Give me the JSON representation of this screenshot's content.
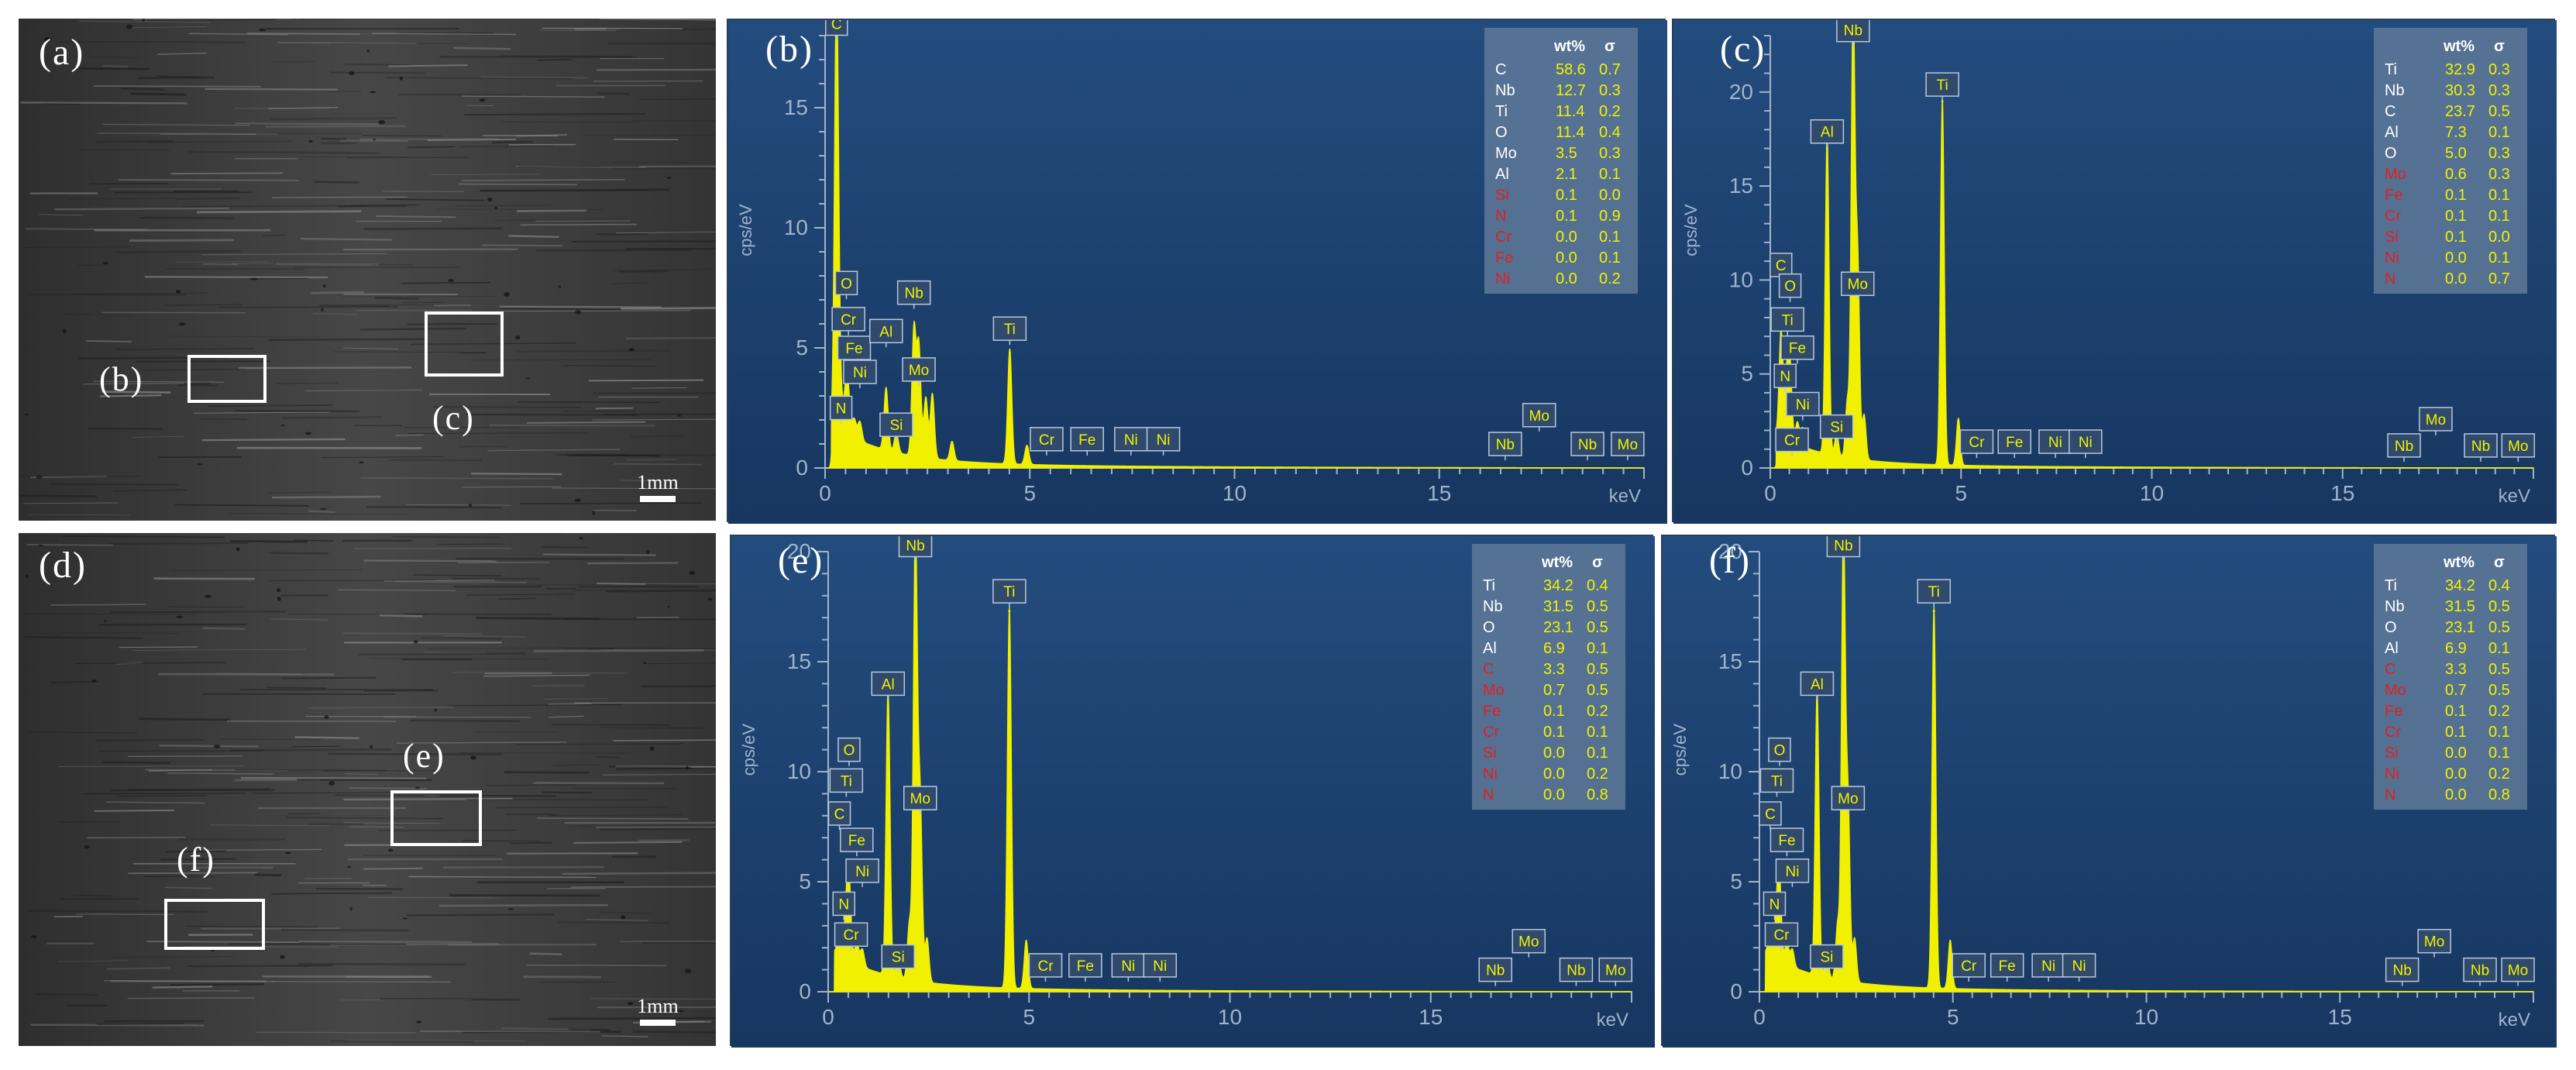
{
  "colors": {
    "spectrum": "#f0f000",
    "plot_bg_top": "#234c7e",
    "plot_bg_bottom": "#173660",
    "label_yellow": "#f2f200",
    "label_red": "#e0201e",
    "label_white": "#ffffff",
    "axis": "#9fb4cc"
  },
  "sem": [
    {
      "id": "a",
      "letter": "(a)",
      "scale_label": "1mm",
      "rois": [
        {
          "label": "(b)"
        },
        {
          "label": "(c)"
        }
      ]
    },
    {
      "id": "d",
      "letter": "(d)",
      "scale_label": "1mm",
      "rois": [
        {
          "label": "(e)"
        },
        {
          "label": "(f)"
        }
      ]
    }
  ],
  "chart_data": [
    {
      "type": "line",
      "panel": "(b)",
      "xlabel": "keV",
      "ylabel": "cps/eV",
      "xlim": [
        0,
        20
      ],
      "ylim": [
        0,
        18
      ],
      "xticks": [
        "0",
        "5",
        "10",
        "15"
      ],
      "yticks": [
        "0",
        "5",
        "10",
        "15"
      ],
      "table_header": [
        "wt%",
        "σ"
      ],
      "table": [
        {
          "el": "C",
          "wt": "58.6",
          "sigma": "0.7",
          "color": "white"
        },
        {
          "el": "Nb",
          "wt": "12.7",
          "sigma": "0.3",
          "color": "white"
        },
        {
          "el": "Ti",
          "wt": "11.4",
          "sigma": "0.2",
          "color": "white"
        },
        {
          "el": "O",
          "wt": "11.4",
          "sigma": "0.4",
          "color": "white"
        },
        {
          "el": "Mo",
          "wt": "3.5",
          "sigma": "0.3",
          "color": "white"
        },
        {
          "el": "Al",
          "wt": "2.1",
          "sigma": "0.1",
          "color": "white"
        },
        {
          "el": "Si",
          "wt": "0.1",
          "sigma": "0.0",
          "color": "red"
        },
        {
          "el": "N",
          "wt": "0.1",
          "sigma": "0.9",
          "color": "red"
        },
        {
          "el": "Cr",
          "wt": "0.0",
          "sigma": "0.1",
          "color": "red"
        },
        {
          "el": "Fe",
          "wt": "0.0",
          "sigma": "0.1",
          "color": "red"
        },
        {
          "el": "Ni",
          "wt": "0.0",
          "sigma": "0.2",
          "color": "red"
        }
      ],
      "peaks": [
        {
          "x": 0.28,
          "y": 18.5,
          "w": 0.05
        },
        {
          "x": 0.39,
          "y": 1.2,
          "w": 0.05
        },
        {
          "x": 0.52,
          "y": 2.0,
          "w": 0.05
        },
        {
          "x": 0.57,
          "y": 1.0,
          "w": 0.05
        },
        {
          "x": 0.71,
          "y": 0.8,
          "w": 0.05
        },
        {
          "x": 0.85,
          "y": 0.8,
          "w": 0.05
        },
        {
          "x": 1.49,
          "y": 2.6,
          "w": 0.05
        },
        {
          "x": 1.74,
          "y": 0.8,
          "w": 0.05
        },
        {
          "x": 2.17,
          "y": 5.3,
          "w": 0.05
        },
        {
          "x": 2.29,
          "y": 4.6,
          "w": 0.05
        },
        {
          "x": 2.46,
          "y": 2.5,
          "w": 0.05
        },
        {
          "x": 2.62,
          "y": 2.7,
          "w": 0.05
        },
        {
          "x": 3.1,
          "y": 0.8,
          "w": 0.05
        },
        {
          "x": 4.51,
          "y": 4.8,
          "w": 0.05
        },
        {
          "x": 4.93,
          "y": 0.8,
          "w": 0.05
        }
      ],
      "labels": [
        {
          "t": "C",
          "x": 0.28,
          "y": 18.5
        },
        {
          "t": "O",
          "x": 0.52,
          "y": 7.7
        },
        {
          "t": "Cr",
          "x": 0.57,
          "y": 6.2
        },
        {
          "t": "Fe",
          "x": 0.71,
          "y": 5.0
        },
        {
          "t": "Al",
          "x": 1.49,
          "y": 5.7
        },
        {
          "t": "Nb",
          "x": 2.17,
          "y": 7.3
        },
        {
          "t": "Ni",
          "x": 0.85,
          "y": 4.0
        },
        {
          "t": "Mo",
          "x": 2.29,
          "y": 4.1
        },
        {
          "t": "N",
          "x": 0.39,
          "y": 2.5
        },
        {
          "t": "Si",
          "x": 1.74,
          "y": 1.8
        },
        {
          "t": "Ti",
          "x": 4.51,
          "y": 5.8
        },
        {
          "t": "Cr",
          "x": 5.41,
          "y": 1.2
        },
        {
          "t": "Fe",
          "x": 6.4,
          "y": 1.2
        },
        {
          "t": "Ni",
          "x": 7.47,
          "y": 1.2
        },
        {
          "t": "Ni",
          "x": 8.26,
          "y": 1.2
        },
        {
          "t": "Mo",
          "x": 17.44,
          "y": 2.2
        },
        {
          "t": "Nb",
          "x": 16.61,
          "y": 1.0
        },
        {
          "t": "Nb",
          "x": 18.62,
          "y": 1.0
        },
        {
          "t": "Mo",
          "x": 19.6,
          "y": 1.0
        }
      ]
    },
    {
      "type": "line",
      "panel": "(c)",
      "xlabel": "keV",
      "ylabel": "cps/eV",
      "xlim": [
        0,
        20
      ],
      "ylim": [
        0,
        23
      ],
      "xticks": [
        "0",
        "5",
        "10",
        "15"
      ],
      "yticks": [
        "0",
        "5",
        "10",
        "15",
        "20"
      ],
      "table_header": [
        "wt%",
        "σ"
      ],
      "table": [
        {
          "el": "Ti",
          "wt": "32.9",
          "sigma": "0.3",
          "color": "white"
        },
        {
          "el": "Nb",
          "wt": "30.3",
          "sigma": "0.3",
          "color": "white"
        },
        {
          "el": "C",
          "wt": "23.7",
          "sigma": "0.5",
          "color": "white"
        },
        {
          "el": "Al",
          "wt": "7.3",
          "sigma": "0.1",
          "color": "white"
        },
        {
          "el": "O",
          "wt": "5.0",
          "sigma": "0.3",
          "color": "white"
        },
        {
          "el": "Mo",
          "wt": "0.6",
          "sigma": "0.3",
          "color": "red"
        },
        {
          "el": "Fe",
          "wt": "0.1",
          "sigma": "0.1",
          "color": "red"
        },
        {
          "el": "Cr",
          "wt": "0.1",
          "sigma": "0.1",
          "color": "red"
        },
        {
          "el": "Si",
          "wt": "0.1",
          "sigma": "0.0",
          "color": "red"
        },
        {
          "el": "Ni",
          "wt": "0.0",
          "sigma": "0.1",
          "color": "red"
        },
        {
          "el": "N",
          "wt": "0.0",
          "sigma": "0.7",
          "color": "red"
        }
      ],
      "peaks": [
        {
          "x": 0.28,
          "y": 5.6,
          "w": 0.05
        },
        {
          "x": 0.39,
          "y": 1.5,
          "w": 0.05
        },
        {
          "x": 0.45,
          "y": 2.5,
          "w": 0.05
        },
        {
          "x": 0.52,
          "y": 3.6,
          "w": 0.05
        },
        {
          "x": 0.71,
          "y": 1.2,
          "w": 0.05
        },
        {
          "x": 0.85,
          "y": 1.0,
          "w": 0.05
        },
        {
          "x": 1.49,
          "y": 17.0,
          "w": 0.05
        },
        {
          "x": 1.74,
          "y": 1.2,
          "w": 0.05
        },
        {
          "x": 2.02,
          "y": 3.0,
          "w": 0.05
        },
        {
          "x": 2.17,
          "y": 24.0,
          "w": 0.05
        },
        {
          "x": 2.29,
          "y": 10.5,
          "w": 0.05
        },
        {
          "x": 2.46,
          "y": 2.4,
          "w": 0.05
        },
        {
          "x": 4.51,
          "y": 19.5,
          "w": 0.05
        },
        {
          "x": 4.93,
          "y": 2.5,
          "w": 0.05
        }
      ],
      "labels": [
        {
          "t": "Nb",
          "x": 2.17,
          "y": 23.3
        },
        {
          "t": "Ti",
          "x": 4.51,
          "y": 20.4
        },
        {
          "t": "Al",
          "x": 1.49,
          "y": 17.9
        },
        {
          "t": "C",
          "x": 0.28,
          "y": 10.8
        },
        {
          "t": "O",
          "x": 0.52,
          "y": 9.7
        },
        {
          "t": "Mo",
          "x": 2.29,
          "y": 9.8
        },
        {
          "t": "Ti",
          "x": 0.45,
          "y": 7.9
        },
        {
          "t": "Fe",
          "x": 0.71,
          "y": 6.4
        },
        {
          "t": "N",
          "x": 0.39,
          "y": 4.9
        },
        {
          "t": "Ni",
          "x": 0.85,
          "y": 3.4
        },
        {
          "t": "Si",
          "x": 1.74,
          "y": 2.2
        },
        {
          "t": "Cr",
          "x": 0.57,
          "y": 1.5
        },
        {
          "t": "Cr",
          "x": 5.41,
          "y": 1.4
        },
        {
          "t": "Fe",
          "x": 6.4,
          "y": 1.4
        },
        {
          "t": "Ni",
          "x": 7.47,
          "y": 1.4
        },
        {
          "t": "Ni",
          "x": 8.26,
          "y": 1.4
        },
        {
          "t": "Mo",
          "x": 17.44,
          "y": 2.6
        },
        {
          "t": "Nb",
          "x": 16.61,
          "y": 1.2
        },
        {
          "t": "Nb",
          "x": 18.62,
          "y": 1.2
        },
        {
          "t": "Mo",
          "x": 19.6,
          "y": 1.2
        }
      ]
    },
    {
      "type": "line",
      "panel": "(e)",
      "xlabel": "keV",
      "ylabel": "cps/eV",
      "xlim": [
        0,
        20
      ],
      "ylim": [
        0,
        20
      ],
      "xticks": [
        "0",
        "5",
        "10",
        "15"
      ],
      "yticks": [
        "0",
        "5",
        "10",
        "15",
        "20"
      ],
      "table_header": [
        "wt%",
        "σ"
      ],
      "table": [
        {
          "el": "Ti",
          "wt": "34.2",
          "sigma": "0.4",
          "color": "white"
        },
        {
          "el": "Nb",
          "wt": "31.5",
          "sigma": "0.5",
          "color": "white"
        },
        {
          "el": "O",
          "wt": "23.1",
          "sigma": "0.5",
          "color": "white"
        },
        {
          "el": "Al",
          "wt": "6.9",
          "sigma": "0.1",
          "color": "white"
        },
        {
          "el": "C",
          "wt": "3.3",
          "sigma": "0.5",
          "color": "red"
        },
        {
          "el": "Mo",
          "wt": "0.7",
          "sigma": "0.5",
          "color": "red"
        },
        {
          "el": "Fe",
          "wt": "0.1",
          "sigma": "0.2",
          "color": "red"
        },
        {
          "el": "Cr",
          "wt": "0.1",
          "sigma": "0.1",
          "color": "red"
        },
        {
          "el": "Si",
          "wt": "0.0",
          "sigma": "0.1",
          "color": "red"
        },
        {
          "el": "Ni",
          "wt": "0.0",
          "sigma": "0.2",
          "color": "red"
        },
        {
          "el": "N",
          "wt": "0.0",
          "sigma": "0.8",
          "color": "red"
        }
      ],
      "peaks": [
        {
          "x": 0.28,
          "y": 1.2,
          "w": 0.05
        },
        {
          "x": 0.45,
          "y": 2.0,
          "w": 0.05
        },
        {
          "x": 0.52,
          "y": 3.4,
          "w": 0.05
        },
        {
          "x": 0.71,
          "y": 1.0,
          "w": 0.05
        },
        {
          "x": 0.85,
          "y": 0.8,
          "w": 0.05
        },
        {
          "x": 1.49,
          "y": 13.0,
          "w": 0.05
        },
        {
          "x": 1.74,
          "y": 1.0,
          "w": 0.05
        },
        {
          "x": 2.02,
          "y": 2.5,
          "w": 0.05
        },
        {
          "x": 2.17,
          "y": 20.5,
          "w": 0.05
        },
        {
          "x": 2.29,
          "y": 8.0,
          "w": 0.05
        },
        {
          "x": 2.46,
          "y": 2.0,
          "w": 0.05
        },
        {
          "x": 4.51,
          "y": 17.3,
          "w": 0.05
        },
        {
          "x": 4.93,
          "y": 2.2,
          "w": 0.05
        }
      ],
      "labels": [
        {
          "t": "Nb",
          "x": 2.17,
          "y": 20.3
        },
        {
          "t": "Ti",
          "x": 4.51,
          "y": 18.2
        },
        {
          "t": "Al",
          "x": 1.49,
          "y": 14.0
        },
        {
          "t": "O",
          "x": 0.52,
          "y": 11.0
        },
        {
          "t": "Ti",
          "x": 0.45,
          "y": 9.6
        },
        {
          "t": "C",
          "x": 0.28,
          "y": 8.1
        },
        {
          "t": "Mo",
          "x": 2.29,
          "y": 8.8
        },
        {
          "t": "Fe",
          "x": 0.71,
          "y": 6.9
        },
        {
          "t": "Ni",
          "x": 0.85,
          "y": 5.5
        },
        {
          "t": "N",
          "x": 0.39,
          "y": 4.0
        },
        {
          "t": "Cr",
          "x": 0.57,
          "y": 2.6
        },
        {
          "t": "Si",
          "x": 1.74,
          "y": 1.6
        },
        {
          "t": "Cr",
          "x": 5.41,
          "y": 1.2
        },
        {
          "t": "Fe",
          "x": 6.4,
          "y": 1.2
        },
        {
          "t": "Ni",
          "x": 7.47,
          "y": 1.2
        },
        {
          "t": "Ni",
          "x": 8.26,
          "y": 1.2
        },
        {
          "t": "Mo",
          "x": 17.44,
          "y": 2.3
        },
        {
          "t": "Nb",
          "x": 16.61,
          "y": 1.0
        },
        {
          "t": "Nb",
          "x": 18.62,
          "y": 1.0
        },
        {
          "t": "Mo",
          "x": 19.6,
          "y": 1.0
        }
      ]
    },
    {
      "type": "line",
      "panel": "(f)",
      "xlabel": "keV",
      "ylabel": "cps/eV",
      "xlim": [
        0,
        20
      ],
      "ylim": [
        0,
        20
      ],
      "xticks": [
        "0",
        "5",
        "10",
        "15"
      ],
      "yticks": [
        "0",
        "5",
        "10",
        "15",
        "20"
      ],
      "table_header": [
        "wt%",
        "σ"
      ],
      "table": [
        {
          "el": "Ti",
          "wt": "34.2",
          "sigma": "0.4",
          "color": "white"
        },
        {
          "el": "Nb",
          "wt": "31.5",
          "sigma": "0.5",
          "color": "white"
        },
        {
          "el": "O",
          "wt": "23.1",
          "sigma": "0.5",
          "color": "white"
        },
        {
          "el": "Al",
          "wt": "6.9",
          "sigma": "0.1",
          "color": "white"
        },
        {
          "el": "C",
          "wt": "3.3",
          "sigma": "0.5",
          "color": "red"
        },
        {
          "el": "Mo",
          "wt": "0.7",
          "sigma": "0.5",
          "color": "red"
        },
        {
          "el": "Fe",
          "wt": "0.1",
          "sigma": "0.2",
          "color": "red"
        },
        {
          "el": "Cr",
          "wt": "0.1",
          "sigma": "0.1",
          "color": "red"
        },
        {
          "el": "Si",
          "wt": "0.0",
          "sigma": "0.1",
          "color": "red"
        },
        {
          "el": "Ni",
          "wt": "0.0",
          "sigma": "0.2",
          "color": "red"
        },
        {
          "el": "N",
          "wt": "0.0",
          "sigma": "0.8",
          "color": "red"
        }
      ],
      "peaks": [
        {
          "x": 0.28,
          "y": 1.2,
          "w": 0.05
        },
        {
          "x": 0.45,
          "y": 2.0,
          "w": 0.05
        },
        {
          "x": 0.52,
          "y": 3.4,
          "w": 0.05
        },
        {
          "x": 0.71,
          "y": 1.0,
          "w": 0.05
        },
        {
          "x": 0.85,
          "y": 0.8,
          "w": 0.05
        },
        {
          "x": 1.49,
          "y": 13.0,
          "w": 0.05
        },
        {
          "x": 1.74,
          "y": 1.0,
          "w": 0.05
        },
        {
          "x": 2.02,
          "y": 2.5,
          "w": 0.05
        },
        {
          "x": 2.17,
          "y": 20.5,
          "w": 0.05
        },
        {
          "x": 2.29,
          "y": 8.0,
          "w": 0.05
        },
        {
          "x": 2.46,
          "y": 2.0,
          "w": 0.05
        },
        {
          "x": 4.51,
          "y": 17.3,
          "w": 0.05
        },
        {
          "x": 4.93,
          "y": 2.2,
          "w": 0.05
        }
      ],
      "labels": [
        {
          "t": "Nb",
          "x": 2.17,
          "y": 20.3
        },
        {
          "t": "Ti",
          "x": 4.51,
          "y": 18.2
        },
        {
          "t": "Al",
          "x": 1.49,
          "y": 14.0
        },
        {
          "t": "O",
          "x": 0.52,
          "y": 11.0
        },
        {
          "t": "Ti",
          "x": 0.45,
          "y": 9.6
        },
        {
          "t": "C",
          "x": 0.28,
          "y": 8.1
        },
        {
          "t": "Mo",
          "x": 2.29,
          "y": 8.8
        },
        {
          "t": "Fe",
          "x": 0.71,
          "y": 6.9
        },
        {
          "t": "Ni",
          "x": 0.85,
          "y": 5.5
        },
        {
          "t": "N",
          "x": 0.39,
          "y": 4.0
        },
        {
          "t": "Cr",
          "x": 0.57,
          "y": 2.6
        },
        {
          "t": "Si",
          "x": 1.74,
          "y": 1.6
        },
        {
          "t": "Cr",
          "x": 5.41,
          "y": 1.2
        },
        {
          "t": "Fe",
          "x": 6.4,
          "y": 1.2
        },
        {
          "t": "Ni",
          "x": 7.47,
          "y": 1.2
        },
        {
          "t": "Ni",
          "x": 8.26,
          "y": 1.2
        },
        {
          "t": "Mo",
          "x": 17.44,
          "y": 2.3
        },
        {
          "t": "Nb",
          "x": 16.61,
          "y": 1.0
        },
        {
          "t": "Nb",
          "x": 18.62,
          "y": 1.0
        },
        {
          "t": "Mo",
          "x": 19.6,
          "y": 1.0
        }
      ]
    }
  ]
}
